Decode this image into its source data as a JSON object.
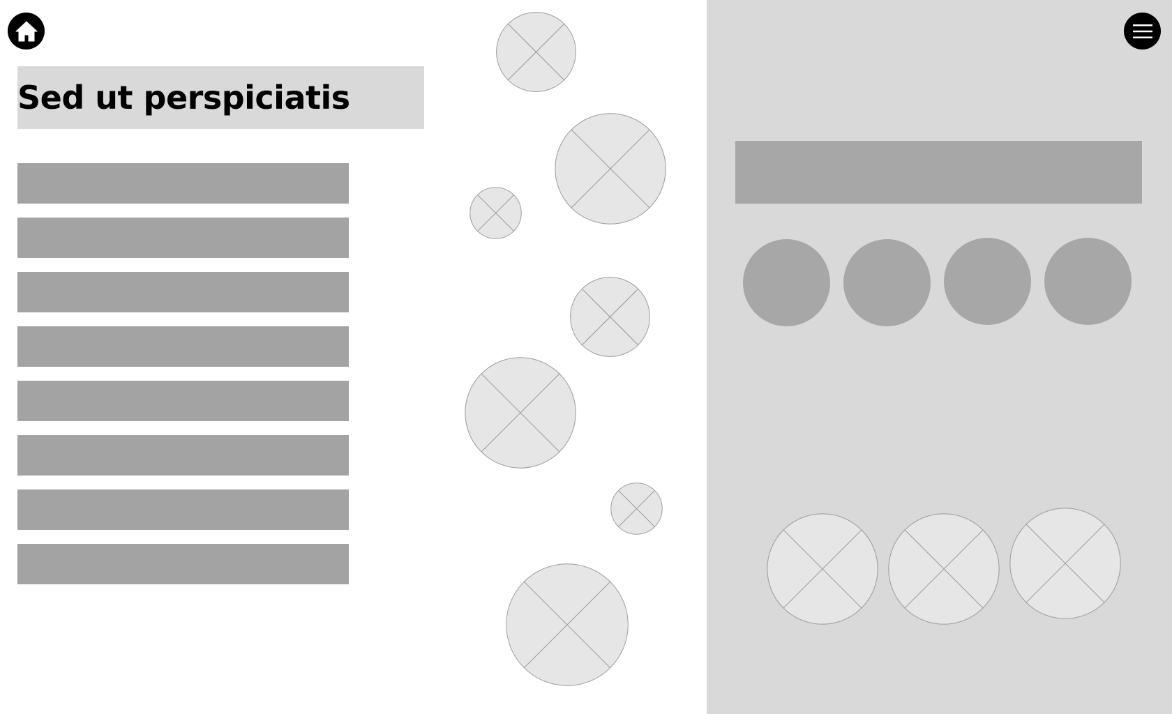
{
  "header": {
    "title": "Sed ut perspiciatis",
    "home_icon": "home-icon",
    "menu_icon": "hamburger-menu-icon"
  },
  "left_list": {
    "item_count": 8
  },
  "colors": {
    "panel_background": "#d9d9d9",
    "bar_fill": "#a3a3a3",
    "placeholder_fill": "#e6e6e6",
    "placeholder_stroke": "#a0a0a0",
    "icon_button": "#000000"
  }
}
